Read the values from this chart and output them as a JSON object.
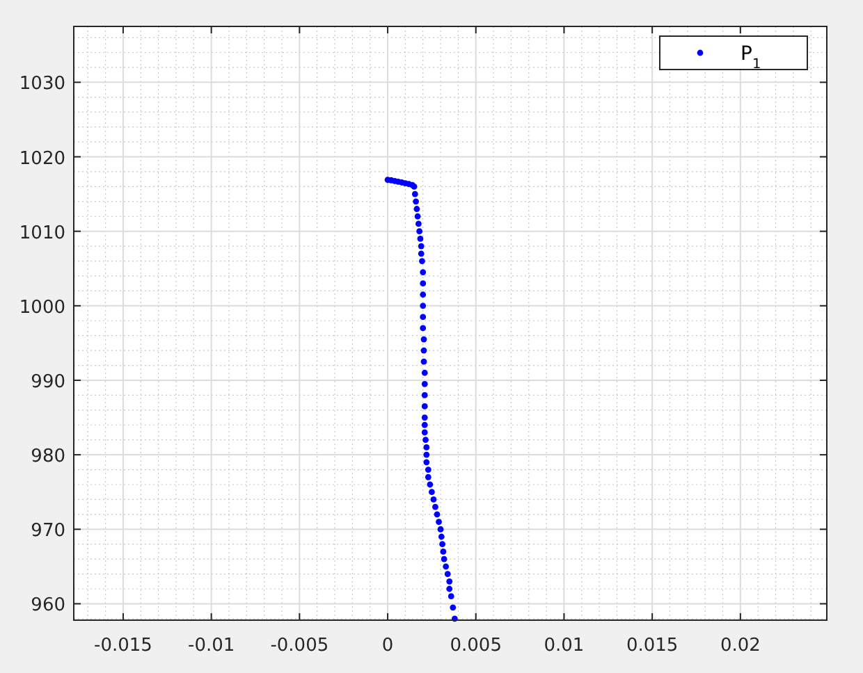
{
  "chart_data": {
    "type": "scatter",
    "xlim": [
      -0.0178,
      0.0249
    ],
    "ylim": [
      957.8,
      1037.5
    ],
    "xticks": [
      -0.015,
      -0.01,
      -0.005,
      0,
      0.005,
      0.01,
      0.015,
      0.02
    ],
    "yticks": [
      960,
      970,
      980,
      990,
      1000,
      1010,
      1020,
      1030
    ],
    "grid": true,
    "legend": "top right",
    "marker": "circle",
    "series": [
      {
        "name": "P$_{1}$",
        "color": "#0000ff",
        "x": [
          0,
          0.0002,
          0.0004,
          0.0006,
          0.0008,
          0.001,
          0.0012,
          0.0014,
          0.0015,
          0.00155,
          0.0016,
          0.00165,
          0.0017,
          0.00175,
          0.0018,
          0.00185,
          0.0019,
          0.0019,
          0.00195,
          0.002,
          0.002,
          0.002,
          0.002,
          0.002,
          0.002,
          0.00205,
          0.00205,
          0.00205,
          0.0021,
          0.0021,
          0.0021,
          0.0021,
          0.0021,
          0.0021,
          0.0021,
          0.00215,
          0.0022,
          0.0022,
          0.0022,
          0.0023,
          0.0023,
          0.0024,
          0.0025,
          0.0026,
          0.0027,
          0.0028,
          0.0029,
          0.003,
          0.00305,
          0.0031,
          0.00315,
          0.0032,
          0.0033,
          0.0034,
          0.0035,
          0.0035,
          0.0036,
          0.0037,
          0.0038
        ],
        "values": [
          1016.9,
          1016.85,
          1016.75,
          1016.65,
          1016.55,
          1016.45,
          1016.35,
          1016.2,
          1016,
          1015,
          1014,
          1013,
          1012,
          1011,
          1010,
          1009,
          1008,
          1007,
          1006,
          1004.5,
          1003,
          1001.5,
          1000,
          998.5,
          997,
          995.5,
          994,
          992.5,
          991,
          989.5,
          988,
          986.5,
          985,
          984,
          983,
          982,
          981,
          980,
          979,
          978,
          977,
          976,
          975,
          974,
          973,
          972,
          971,
          970,
          969,
          968,
          967,
          966,
          965,
          964,
          963,
          962,
          961,
          959.5,
          958
        ]
      }
    ]
  }
}
